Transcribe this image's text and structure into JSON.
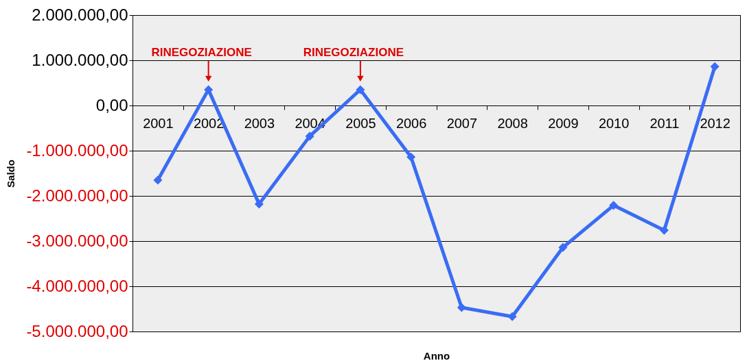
{
  "chart_data": {
    "type": "line",
    "xlabel": "Anno",
    "ylabel": "Saldo",
    "categories": [
      "2001",
      "2002",
      "2003",
      "2004",
      "2005",
      "2006",
      "2007",
      "2008",
      "2009",
      "2010",
      "2011",
      "2012"
    ],
    "series": [
      {
        "color": "#3a6cf4",
        "values": [
          -1650000,
          350000,
          -2180000,
          -680000,
          350000,
          -1140000,
          -4470000,
          -4670000,
          -3140000,
          -2210000,
          -2760000,
          860000
        ]
      }
    ],
    "ylim": [
      -5000000,
      2000000
    ],
    "yticks": [
      {
        "value": -5000000,
        "label": "-5.000.000,00"
      },
      {
        "value": -4000000,
        "label": "-4.000.000,00"
      },
      {
        "value": -3000000,
        "label": "-3.000.000,00"
      },
      {
        "value": -2000000,
        "label": "-2.000.000,00"
      },
      {
        "value": -1000000,
        "label": "-1.000.000,00"
      },
      {
        "value": 0,
        "label": "0,00"
      },
      {
        "value": 1000000,
        "label": "1.000.000,00"
      },
      {
        "value": 2000000,
        "label": "2.000.000,00"
      }
    ],
    "annotations": [
      {
        "text": "RINEGOZIAZIONE",
        "x": "2002",
        "y": 350000
      },
      {
        "text": "RINEGOZIAZIONE",
        "x": "2005",
        "y": 350000
      }
    ],
    "grid": "y",
    "marker": "diamond",
    "line_style": "solid"
  }
}
